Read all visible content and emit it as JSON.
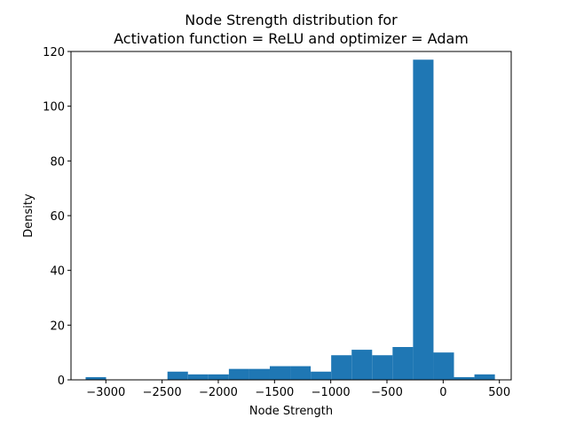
{
  "chart_data": {
    "type": "bar",
    "title_line1": "Node Strength distribution for",
    "title_line2": "Activation function = ReLU and optimizer = Adam",
    "xlabel": "Node Strength",
    "ylabel": "Density",
    "xlim": [
      -3310,
      605
    ],
    "ylim": [
      0,
      120
    ],
    "xticks": [
      -3000,
      -2500,
      -2000,
      -1500,
      -1000,
      -500,
      0,
      500
    ],
    "xtick_labels": [
      "−3000",
      "−2500",
      "−2000",
      "−1500",
      "−1000",
      "−500",
      "0",
      "500"
    ],
    "yticks": [
      0,
      20,
      40,
      60,
      80,
      100,
      120
    ],
    "ytick_labels": [
      "0",
      "20",
      "40",
      "60",
      "80",
      "100",
      "120"
    ],
    "bin_edges": [
      -3180,
      -2998,
      -2816,
      -2634,
      -2452,
      -2270,
      -2088,
      -1906,
      -1724,
      -1542,
      -1360,
      -1178,
      -996,
      -814,
      -632,
      -450,
      -268,
      -86,
      96,
      278,
      460
    ],
    "values": [
      1,
      0,
      0,
      0,
      3,
      2,
      2,
      4,
      4,
      5,
      5,
      3,
      9,
      11,
      9,
      12,
      117,
      10,
      1,
      2
    ],
    "bar_color": "#1f77b4",
    "grid": false,
    "legend": "none"
  }
}
